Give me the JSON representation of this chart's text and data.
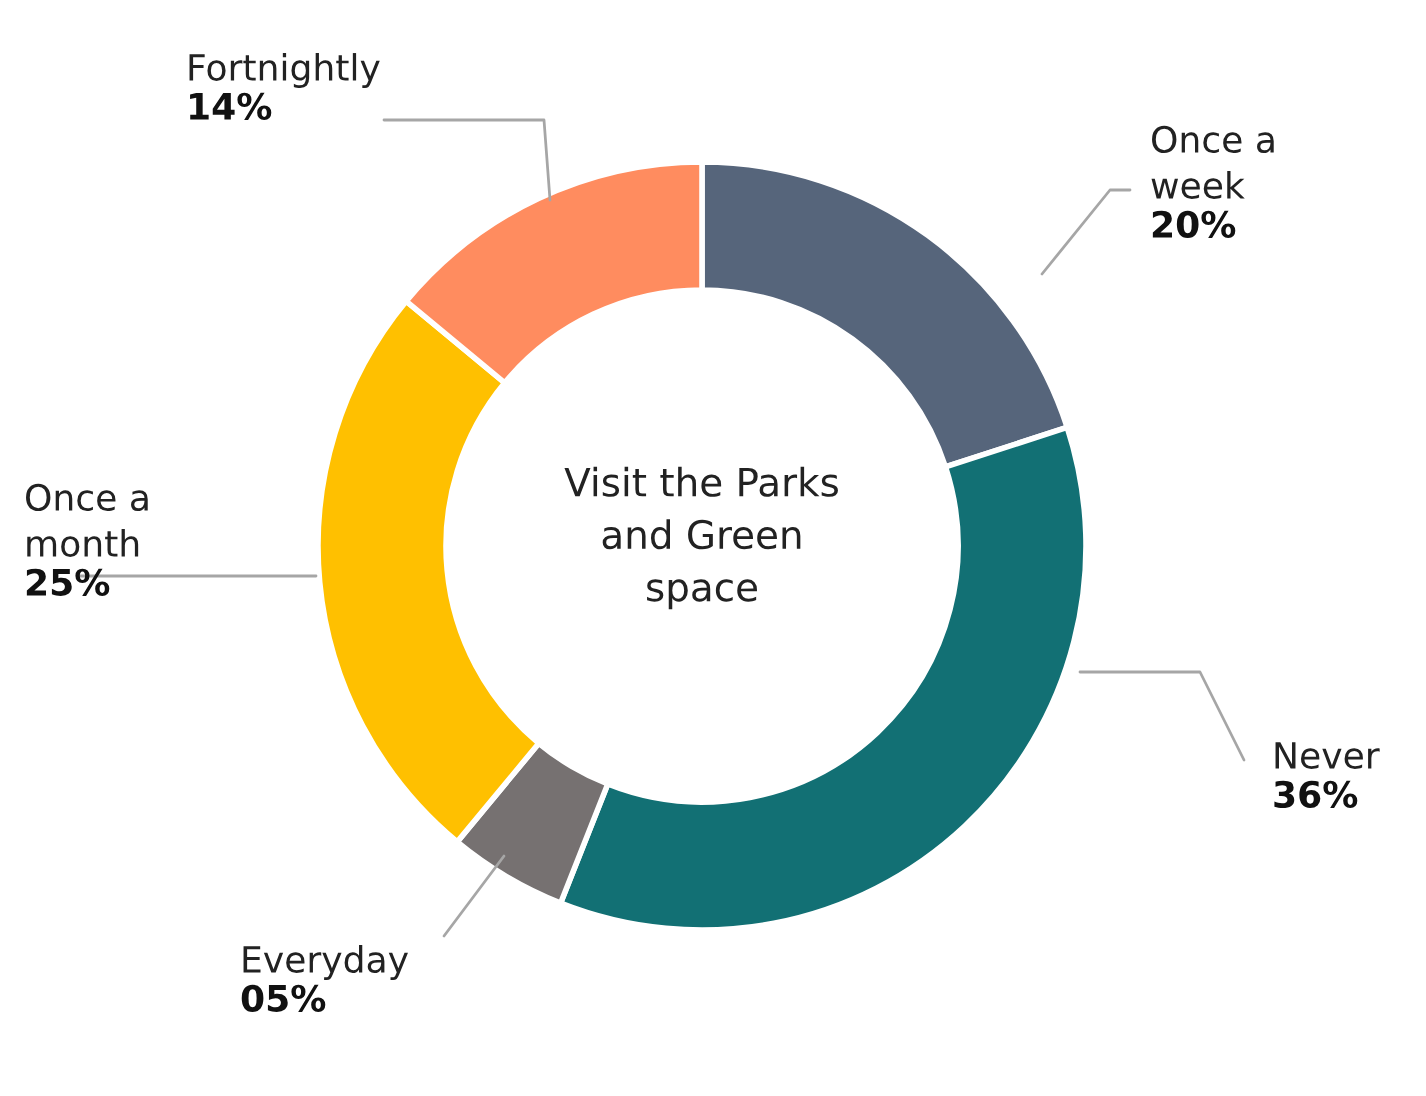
{
  "chart_data": {
    "type": "donut",
    "title": "Visit the Parks\nand Green\nspace",
    "categories": [
      "Once a\nweek",
      "Never",
      "Everyday",
      "Once a\nmonth",
      "Fortnightly"
    ],
    "values": [
      20,
      36,
      5,
      25,
      14
    ],
    "value_labels": [
      "20%",
      "36%",
      "05%",
      "25%",
      "14%"
    ],
    "colors": [
      "#56657b",
      "#127074",
      "#767171",
      "#ffc000",
      "#ff8c5f"
    ],
    "legend": false
  }
}
